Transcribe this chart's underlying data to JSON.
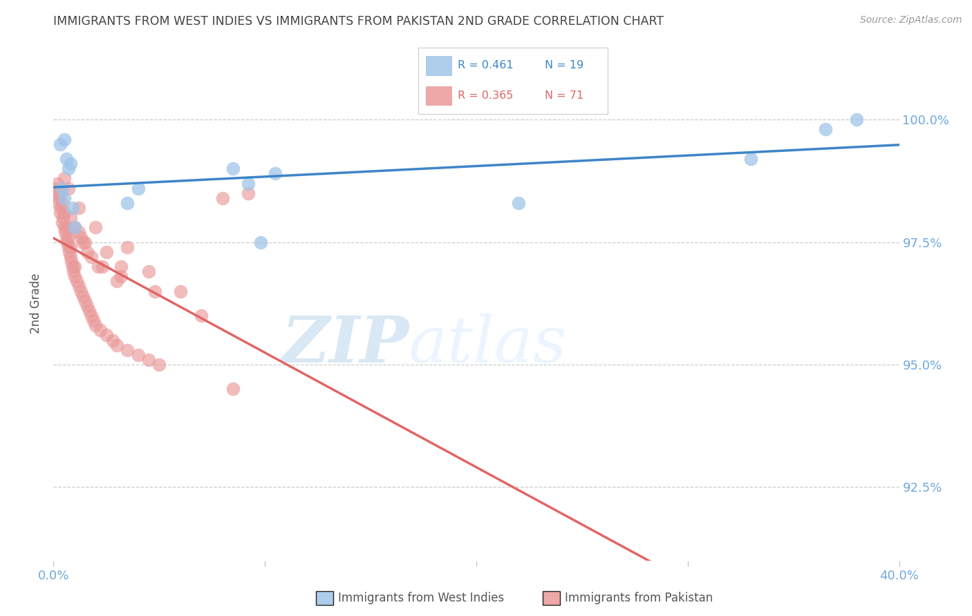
{
  "title": "IMMIGRANTS FROM WEST INDIES VS IMMIGRANTS FROM PAKISTAN 2ND GRADE CORRELATION CHART",
  "source": "Source: ZipAtlas.com",
  "ylabel": "2nd Grade",
  "legend_blue_r": "0.461",
  "legend_blue_n": "19",
  "legend_pink_r": "0.365",
  "legend_pink_n": "71",
  "legend_blue_label": "Immigrants from West Indies",
  "legend_pink_label": "Immigrants from Pakistan",
  "xlim": [
    0.0,
    40.0
  ],
  "ylim": [
    91.0,
    101.5
  ],
  "yticks": [
    92.5,
    95.0,
    97.5,
    100.0
  ],
  "xticks": [
    0.0,
    10.0,
    20.0,
    30.0,
    40.0
  ],
  "xtick_labels": [
    "0.0%",
    "",
    "",
    "",
    "40.0%"
  ],
  "ytick_labels": [
    "92.5%",
    "95.0%",
    "97.5%",
    "100.0%"
  ],
  "blue_color": "#9fc5e8",
  "pink_color": "#ea9999",
  "blue_line_color": "#3d85c8",
  "pink_line_color": "#e06666",
  "title_color": "#444444",
  "axis_label_color": "#6fa8dc",
  "watermark_zip": "ZIP",
  "watermark_atlas": "atlas",
  "blue_x": [
    0.3,
    0.5,
    0.6,
    0.7,
    0.8,
    0.4,
    0.5,
    0.9,
    1.0,
    3.5,
    4.0,
    8.5,
    9.2,
    9.8,
    10.5,
    22.0,
    33.0,
    36.5,
    38.0
  ],
  "blue_y": [
    99.5,
    99.6,
    99.2,
    99.0,
    99.1,
    98.6,
    98.4,
    98.2,
    97.8,
    98.3,
    98.6,
    99.0,
    98.7,
    97.5,
    98.9,
    98.3,
    99.2,
    99.8,
    100.0
  ],
  "pink_x": [
    0.1,
    0.15,
    0.2,
    0.2,
    0.25,
    0.3,
    0.3,
    0.35,
    0.4,
    0.4,
    0.45,
    0.5,
    0.5,
    0.55,
    0.6,
    0.6,
    0.65,
    0.7,
    0.7,
    0.75,
    0.8,
    0.8,
    0.85,
    0.9,
    0.95,
    1.0,
    1.0,
    1.1,
    1.2,
    1.3,
    1.4,
    1.5,
    1.6,
    1.7,
    1.8,
    1.9,
    2.0,
    2.2,
    2.5,
    2.8,
    3.0,
    3.5,
    4.0,
    4.5,
    5.0,
    1.5,
    1.8,
    2.3,
    3.2,
    4.8,
    1.2,
    1.6,
    2.1,
    3.0,
    0.8,
    1.0,
    1.4,
    8.0,
    9.2,
    1.3,
    3.2,
    2.5,
    0.5,
    0.7,
    1.2,
    2.0,
    3.5,
    4.5,
    6.0,
    7.0,
    8.5
  ],
  "pink_y": [
    98.6,
    98.5,
    98.7,
    98.3,
    98.4,
    98.5,
    98.1,
    98.2,
    98.3,
    97.9,
    98.0,
    97.8,
    98.1,
    97.7,
    97.8,
    97.6,
    97.5,
    97.4,
    97.6,
    97.3,
    97.2,
    97.4,
    97.1,
    97.0,
    96.9,
    96.8,
    97.0,
    96.7,
    96.6,
    96.5,
    96.4,
    96.3,
    96.2,
    96.1,
    96.0,
    95.9,
    95.8,
    95.7,
    95.6,
    95.5,
    95.4,
    95.3,
    95.2,
    95.1,
    95.0,
    97.5,
    97.2,
    97.0,
    96.8,
    96.5,
    97.7,
    97.3,
    97.0,
    96.7,
    98.0,
    97.8,
    97.5,
    98.4,
    98.5,
    97.6,
    97.0,
    97.3,
    98.8,
    98.6,
    98.2,
    97.8,
    97.4,
    96.9,
    96.5,
    96.0,
    94.5
  ]
}
